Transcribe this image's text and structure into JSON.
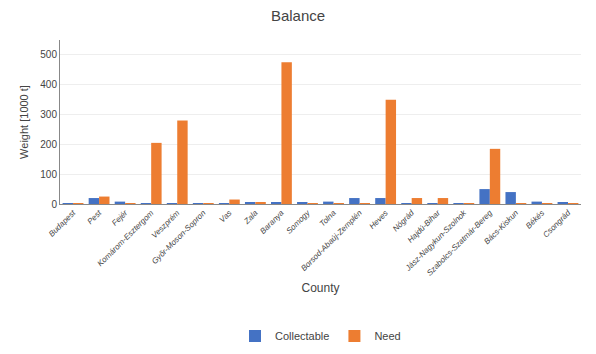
{
  "chart_data": {
    "type": "bar",
    "title": "Balance",
    "xlabel": "County",
    "ylabel": "Weight [1000 t]",
    "categories": [
      "Budapest",
      "Pest",
      "Fejér",
      "Komárom-Esztergom",
      "Veszprém",
      "Győr-Moson-Sopron",
      "Vas",
      "Zala",
      "Baranya",
      "Somogy",
      "Tolna",
      "Borsod-Abaúj-Zemplén",
      "Heves",
      "Nógrád",
      "Hajdú-Bihar",
      "Jász-Nagykun-Szolnok",
      "Szabolcs-Szatmár-Bereg",
      "Bács-Kiskun",
      "Békés",
      "Csongrád"
    ],
    "series": [
      {
        "name": "Collectable",
        "color": "#4472C4",
        "values": [
          2,
          20,
          8,
          3,
          3,
          3,
          3,
          5,
          5,
          5,
          8,
          20,
          20,
          3,
          3,
          3,
          50,
          40,
          8,
          5
        ]
      },
      {
        "name": "Need",
        "color": "#ED7D31",
        "values": [
          2,
          25,
          2,
          205,
          280,
          2,
          15,
          5,
          475,
          2,
          2,
          2,
          350,
          20,
          20,
          3,
          185,
          2,
          2,
          2
        ]
      }
    ],
    "ylim": [
      0,
      550
    ],
    "yticks": [
      0,
      100,
      200,
      300,
      400,
      500
    ],
    "grid": true,
    "legend": "bottom"
  }
}
